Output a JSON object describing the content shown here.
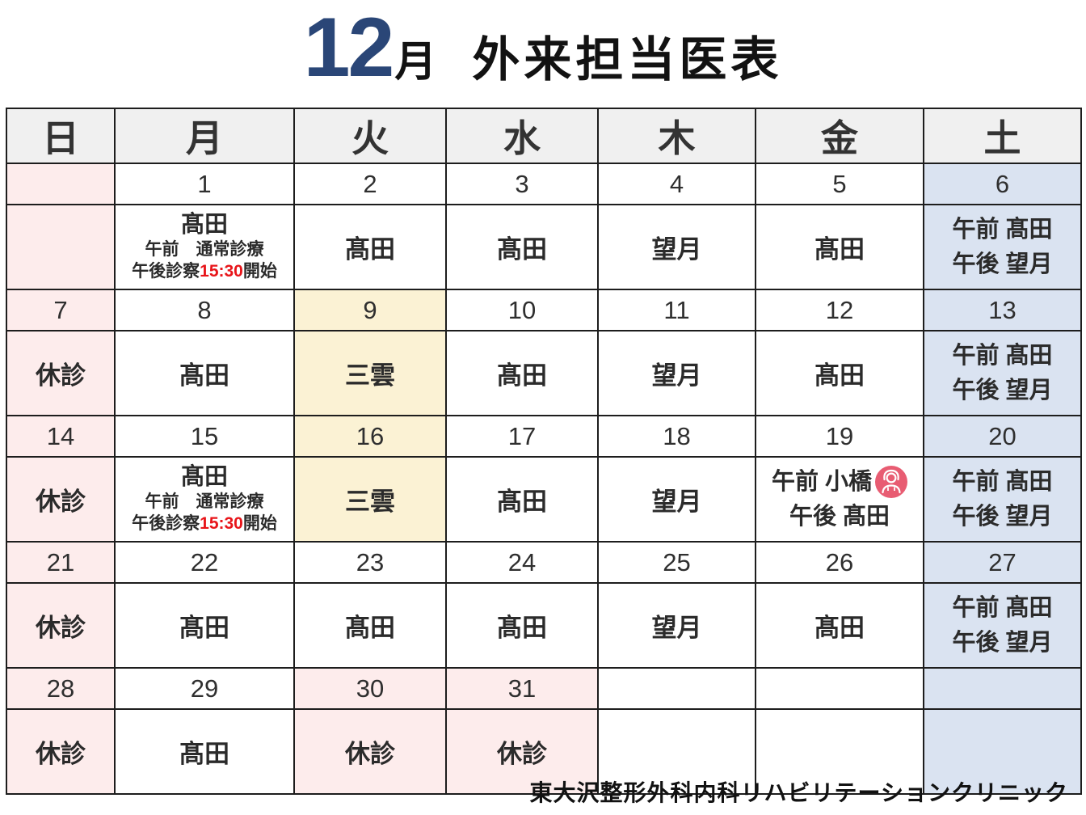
{
  "title": {
    "big": "12",
    "suffix": "月",
    "rest": "外来担当医表"
  },
  "footer": "東大沢整形外科内科リハビリテーションクリニック",
  "colors": {
    "red_text": "#e8151a",
    "navy_text": "#26477c",
    "title_navy": "#2a4677",
    "sunday_bg": "#fdecec",
    "tuesday_highlight_bg": "#fbf2d4",
    "saturday_bg": "#dae3f1",
    "weekday_header_bg": "#f0f0f0",
    "doctor_icon_pink": "#e85c72"
  },
  "weekday_header": [
    {
      "label": "日",
      "style": "sun"
    },
    {
      "label": "月",
      "style": "wk"
    },
    {
      "label": "火",
      "style": "wk"
    },
    {
      "label": "水",
      "style": "wk"
    },
    {
      "label": "木",
      "style": "wk"
    },
    {
      "label": "金",
      "style": "wk"
    },
    {
      "label": "土",
      "style": "sat"
    }
  ],
  "special_note": {
    "am": "午前　通常診療",
    "pm_pre": "午後診察",
    "pm_time": "15:30",
    "pm_post": "開始"
  },
  "weeks": [
    {
      "dates": [
        {
          "t": "",
          "bg": "pink"
        },
        {
          "t": "1"
        },
        {
          "t": "2"
        },
        {
          "t": "3"
        },
        {
          "t": "4"
        },
        {
          "t": "5"
        },
        {
          "t": "6",
          "bg": "blue",
          "fg": "navy"
        }
      ],
      "doctors": [
        {
          "type": "empty",
          "bg": "pink"
        },
        {
          "type": "note",
          "name": "髙田"
        },
        {
          "type": "text",
          "t": "髙田"
        },
        {
          "type": "text",
          "t": "髙田"
        },
        {
          "type": "text",
          "t": "望月"
        },
        {
          "type": "text",
          "t": "髙田"
        },
        {
          "type": "ampm",
          "lines": [
            "午前 髙田",
            "午後 望月"
          ],
          "bg": "blue"
        }
      ]
    },
    {
      "dates": [
        {
          "t": "7",
          "bg": "pink",
          "fg": "red"
        },
        {
          "t": "8"
        },
        {
          "t": "9",
          "bg": "cream"
        },
        {
          "t": "10"
        },
        {
          "t": "11"
        },
        {
          "t": "12"
        },
        {
          "t": "13",
          "bg": "blue",
          "fg": "navy"
        }
      ],
      "doctors": [
        {
          "type": "text",
          "t": "休診",
          "bg": "pink",
          "fg": "red"
        },
        {
          "type": "text",
          "t": "髙田"
        },
        {
          "type": "text",
          "t": "三雲",
          "bg": "cream"
        },
        {
          "type": "text",
          "t": "髙田"
        },
        {
          "type": "text",
          "t": "望月"
        },
        {
          "type": "text",
          "t": "髙田"
        },
        {
          "type": "ampm",
          "lines": [
            "午前 髙田",
            "午後 望月"
          ],
          "bg": "blue"
        }
      ]
    },
    {
      "dates": [
        {
          "t": "14",
          "bg": "pink",
          "fg": "red"
        },
        {
          "t": "15"
        },
        {
          "t": "16",
          "bg": "cream"
        },
        {
          "t": "17"
        },
        {
          "t": "18"
        },
        {
          "t": "19"
        },
        {
          "t": "20",
          "bg": "blue",
          "fg": "navy"
        }
      ],
      "doctors": [
        {
          "type": "text",
          "t": "休診",
          "bg": "pink",
          "fg": "red"
        },
        {
          "type": "note",
          "name": "髙田"
        },
        {
          "type": "text",
          "t": "三雲",
          "bg": "cream"
        },
        {
          "type": "text",
          "t": "髙田"
        },
        {
          "type": "text",
          "t": "望月"
        },
        {
          "type": "ampm",
          "lines": [
            "午前 小橋",
            "午後 髙田"
          ],
          "icon": true
        },
        {
          "type": "ampm",
          "lines": [
            "午前 髙田",
            "午後 望月"
          ],
          "bg": "blue"
        }
      ]
    },
    {
      "dates": [
        {
          "t": "21",
          "bg": "pink",
          "fg": "red"
        },
        {
          "t": "22"
        },
        {
          "t": "23"
        },
        {
          "t": "24"
        },
        {
          "t": "25"
        },
        {
          "t": "26"
        },
        {
          "t": "27",
          "bg": "blue",
          "fg": "navy"
        }
      ],
      "doctors": [
        {
          "type": "text",
          "t": "休診",
          "bg": "pink",
          "fg": "red"
        },
        {
          "type": "text",
          "t": "髙田"
        },
        {
          "type": "text",
          "t": "髙田"
        },
        {
          "type": "text",
          "t": "髙田"
        },
        {
          "type": "text",
          "t": "望月"
        },
        {
          "type": "text",
          "t": "髙田"
        },
        {
          "type": "ampm",
          "lines": [
            "午前 髙田",
            "午後 望月"
          ],
          "bg": "blue"
        }
      ]
    },
    {
      "dates": [
        {
          "t": "28",
          "bg": "pink",
          "fg": "red"
        },
        {
          "t": "29"
        },
        {
          "t": "30",
          "bg": "pink"
        },
        {
          "t": "31",
          "bg": "pink"
        },
        {
          "t": ""
        },
        {
          "t": ""
        },
        {
          "t": "",
          "bg": "blue"
        }
      ],
      "doctors": [
        {
          "type": "text",
          "t": "休診",
          "bg": "pink",
          "fg": "red"
        },
        {
          "type": "text",
          "t": "髙田"
        },
        {
          "type": "text",
          "t": "休診",
          "bg": "pink",
          "fg": "red"
        },
        {
          "type": "text",
          "t": "休診",
          "bg": "pink",
          "fg": "red"
        },
        {
          "type": "empty"
        },
        {
          "type": "empty"
        },
        {
          "type": "empty",
          "bg": "blue"
        }
      ]
    }
  ]
}
